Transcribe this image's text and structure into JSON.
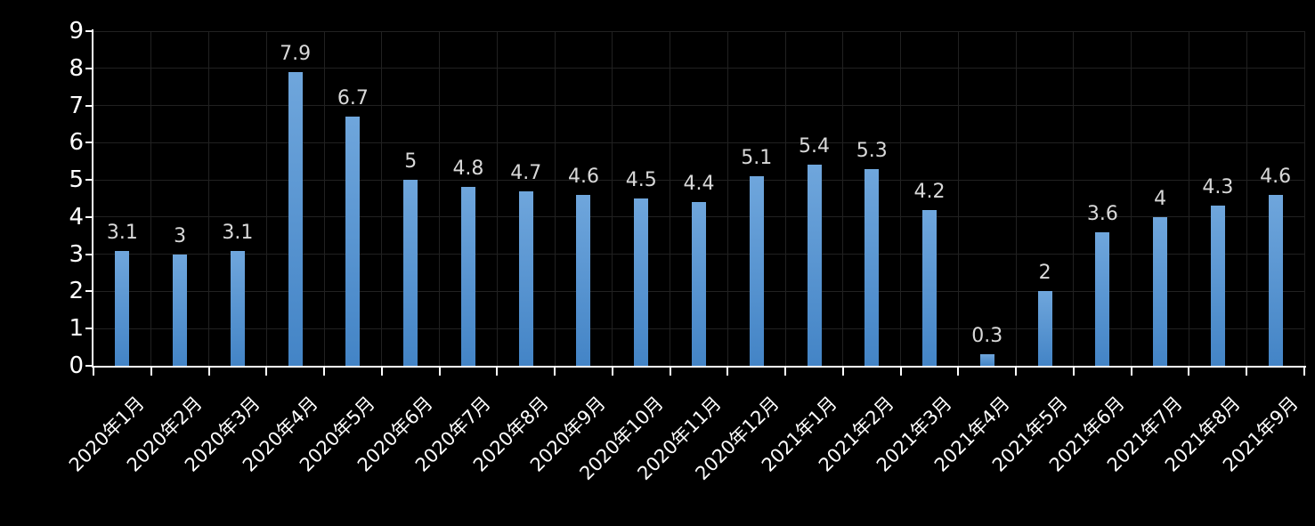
{
  "chart_data": {
    "type": "bar",
    "title": "",
    "xlabel": "",
    "ylabel": "",
    "categories": [
      "2020年1月",
      "2020年2月",
      "2020年3月",
      "2020年4月",
      "2020年5月",
      "2020年6月",
      "2020年7月",
      "2020年8月",
      "2020年9月",
      "2020年10月",
      "2020年11月",
      "2020年12月",
      "2021年1月",
      "2021年2月",
      "2021年3月",
      "2021年4月",
      "2021年5月",
      "2021年6月",
      "2021年7月",
      "2021年8月",
      "2021年9月"
    ],
    "values": [
      3.1,
      3,
      3.1,
      7.9,
      6.7,
      5,
      4.8,
      4.7,
      4.6,
      4.5,
      4.4,
      5.1,
      5.4,
      5.3,
      4.2,
      0.3,
      2,
      3.6,
      4,
      4.3,
      4.6
    ],
    "data_labels": [
      "3.1",
      "3",
      "3.1",
      "7.9",
      "6.7",
      "5",
      "4.8",
      "4.7",
      "4.6",
      "4.5",
      "4.4",
      "5.1",
      "5.4",
      "5.3",
      "4.2",
      "0.3",
      "2",
      "3.6",
      "4",
      "4.3",
      "4.6"
    ],
    "ylim": [
      0,
      9
    ],
    "yticks": [
      "0",
      "1",
      "2",
      "3",
      "4",
      "5",
      "6",
      "7",
      "8",
      "9"
    ],
    "grid": true,
    "legend": "none",
    "colors": {
      "background": "#000000",
      "bar_gradient_top": "#6FA6DC",
      "bar_gradient_bottom": "#4384C6",
      "gridline": "#212121",
      "axis_line": "#FFFFFF",
      "axis_text": "#FFFFFF",
      "data_label_text": "#D9D9D9"
    }
  }
}
